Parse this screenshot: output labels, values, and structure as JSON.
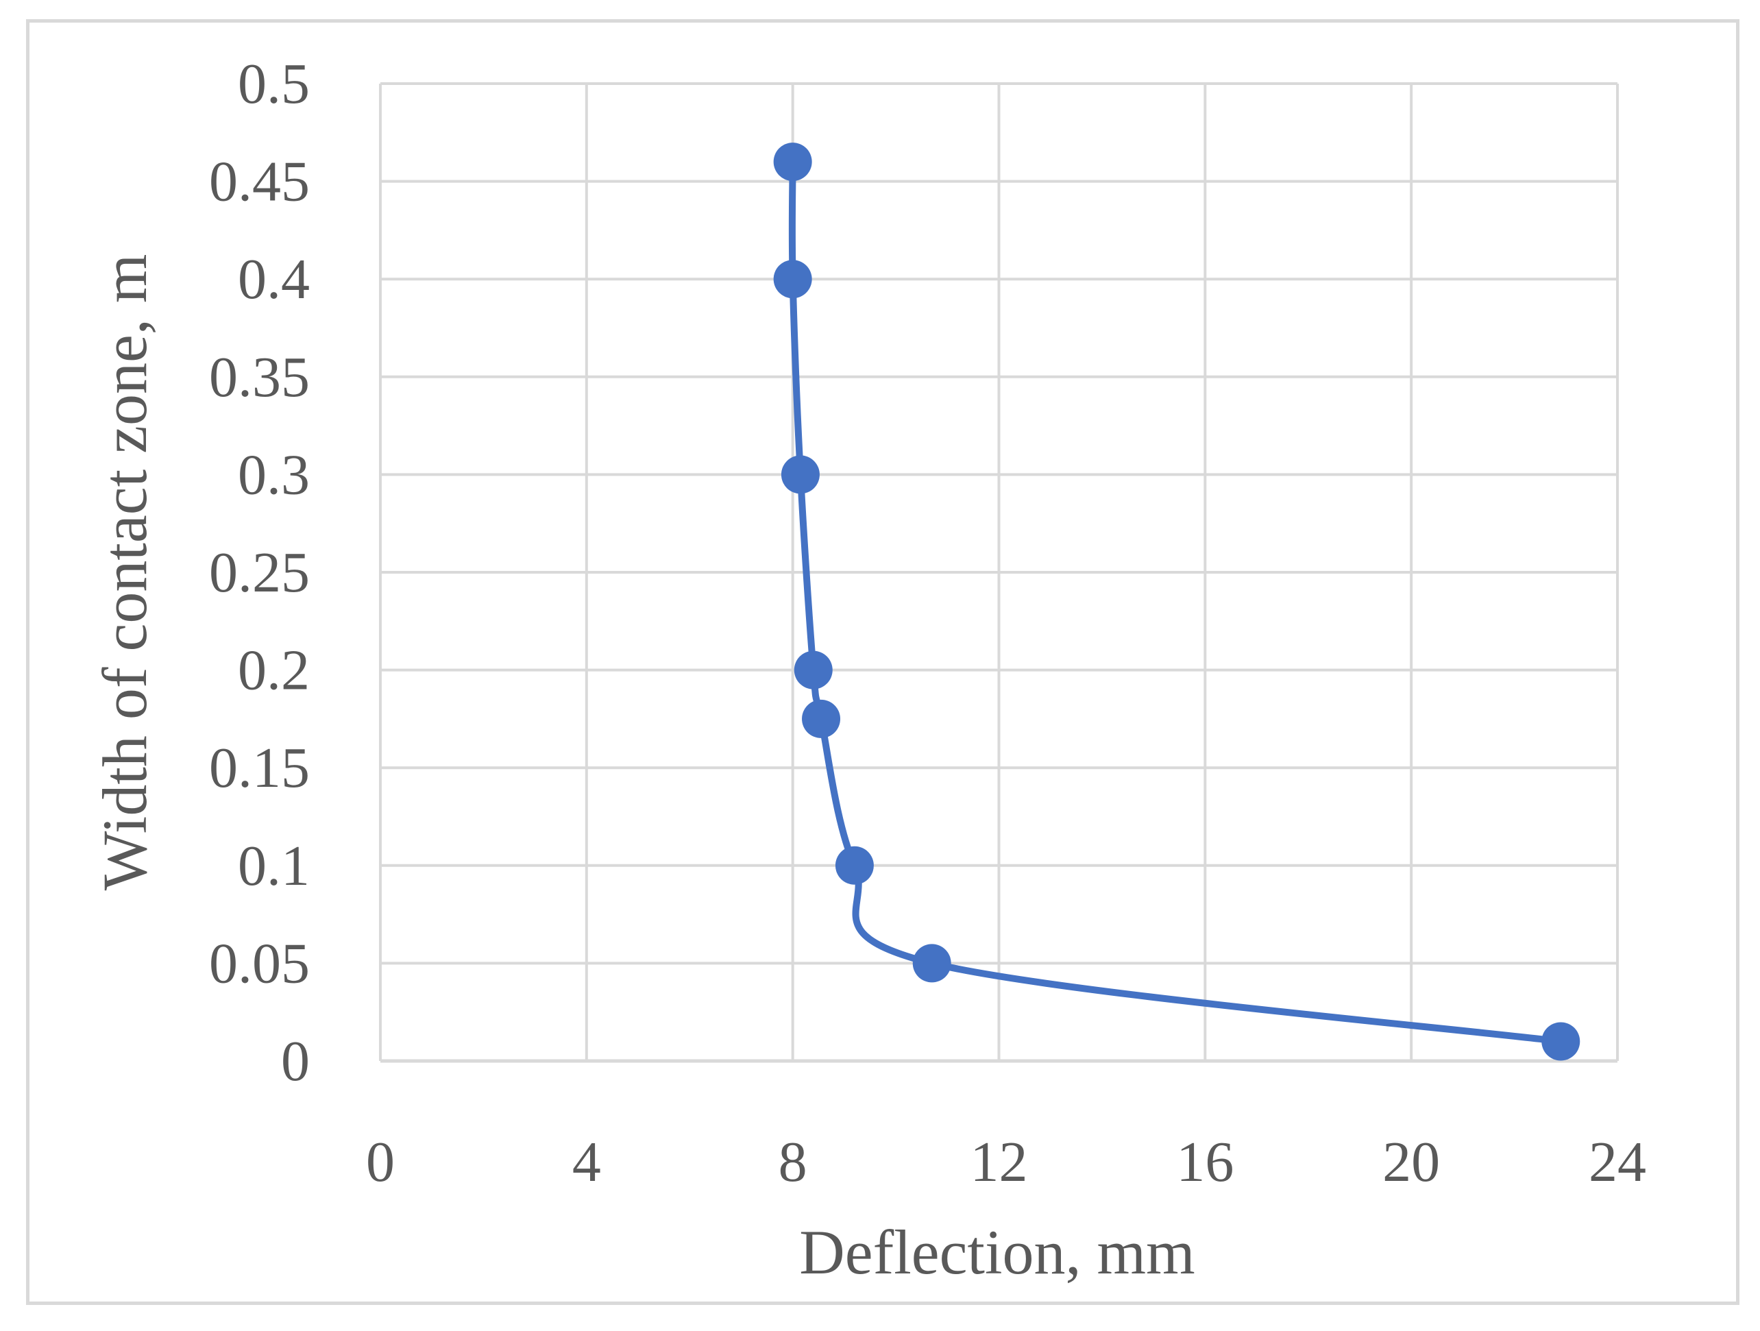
{
  "chart_data": {
    "type": "line",
    "xlabel": "Deflection, mm",
    "ylabel": "Width of contact zone, m",
    "xlim": [
      0,
      24
    ],
    "ylim": [
      0,
      0.5
    ],
    "x_ticks": [
      "0",
      "4",
      "8",
      "12",
      "16",
      "20",
      "24"
    ],
    "y_ticks": [
      "0",
      "0.05",
      "0.1",
      "0.15",
      "0.2",
      "0.25",
      "0.3",
      "0.35",
      "0.4",
      "0.45",
      "0.5"
    ],
    "grid": true,
    "smooth": true,
    "marker": "circle",
    "series": [
      {
        "color": "#4472c4",
        "x": [
          8.0,
          8.0,
          8.15,
          8.4,
          8.55,
          9.2,
          10.7,
          22.9
        ],
        "y": [
          0.46,
          0.4,
          0.3,
          0.2,
          0.175,
          0.1,
          0.05,
          0.01
        ]
      }
    ]
  }
}
